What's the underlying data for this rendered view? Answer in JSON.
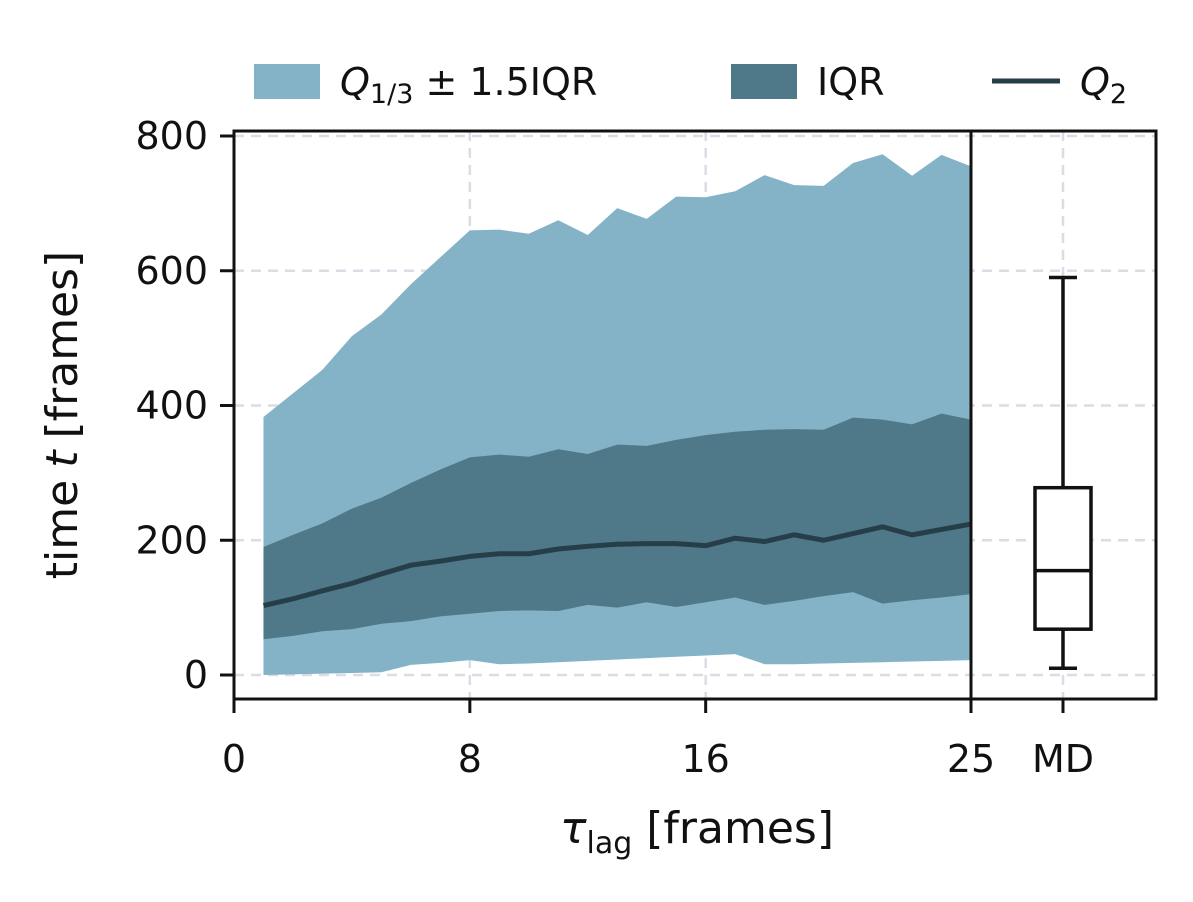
{
  "chart_data": {
    "type": "area",
    "title": "",
    "xlabel": "τ",
    "xlabel_sub": "lag",
    "xlabel_unit": "[frames]",
    "ylabel_prefix": "time",
    "ylabel_var": "t",
    "ylabel_unit": "[frames]",
    "xlim": [
      0,
      25
    ],
    "ylim": [
      -35,
      800
    ],
    "x_ticks": [
      0,
      8,
      16,
      25
    ],
    "x_tick_labels": [
      "0",
      "8",
      "16",
      "25"
    ],
    "y_ticks": [
      0,
      200,
      400,
      600,
      800
    ],
    "y_tick_labels": [
      "0",
      "200",
      "400",
      "600",
      "800"
    ],
    "grid": true,
    "legend": {
      "placement": "top",
      "entries": [
        {
          "id": "whisker",
          "label_var": "Q",
          "label_sub": "1/3",
          "label_rest": " ± 1.5IQR",
          "color": "#84b2c6"
        },
        {
          "id": "iqr",
          "label": "IQR",
          "color": "#4f7889"
        },
        {
          "id": "median",
          "label_var": "Q",
          "label_sub": "2",
          "color": "#263e48"
        }
      ]
    },
    "x": [
      1,
      2,
      3,
      4,
      5,
      6,
      7,
      8,
      9,
      10,
      11,
      12,
      13,
      14,
      15,
      16,
      17,
      18,
      19,
      20,
      21,
      22,
      23,
      24,
      25
    ],
    "series": [
      {
        "name": "Q1/3 - 1.5IQR",
        "values": [
          0,
          1,
          2,
          3,
          4,
          15,
          18,
          22,
          16,
          17,
          19,
          21,
          23,
          25,
          27,
          29,
          31,
          16,
          16,
          17,
          18,
          19,
          20,
          21,
          22
        ]
      },
      {
        "name": "Q1/3 + 1.5IQR",
        "values": [
          383,
          418,
          453,
          503,
          535,
          580,
          620,
          660,
          661,
          655,
          675,
          653,
          693,
          677,
          710,
          709,
          718,
          742,
          727,
          726,
          760,
          773,
          741,
          772,
          755
        ]
      },
      {
        "name": "Q1",
        "values": [
          53,
          58,
          65,
          68,
          76,
          80,
          87,
          91,
          95,
          96,
          95,
          104,
          100,
          108,
          101,
          108,
          115,
          104,
          110,
          117,
          123,
          106,
          111,
          115,
          120
        ]
      },
      {
        "name": "Q3",
        "values": [
          190,
          208,
          225,
          247,
          263,
          285,
          305,
          323,
          327,
          324,
          335,
          328,
          342,
          340,
          349,
          356,
          361,
          364,
          365,
          364,
          382,
          379,
          372,
          388,
          379
        ]
      },
      {
        "name": "Q2",
        "values": [
          103,
          113,
          125,
          136,
          150,
          163,
          169,
          176,
          180,
          180,
          187,
          191,
          194,
          195,
          195,
          192,
          203,
          198,
          208,
          200,
          210,
          220,
          208,
          216,
          224
        ]
      }
    ],
    "md_box": {
      "label": "MD",
      "whisker_low": 10,
      "q1": 68,
      "median": 155,
      "q3": 278,
      "whisker_high": 590
    },
    "colors": {
      "whisker_band": "#84b2c6",
      "iqr_band": "#4f7889",
      "median_line": "#263e48",
      "axes": "#111111"
    }
  }
}
